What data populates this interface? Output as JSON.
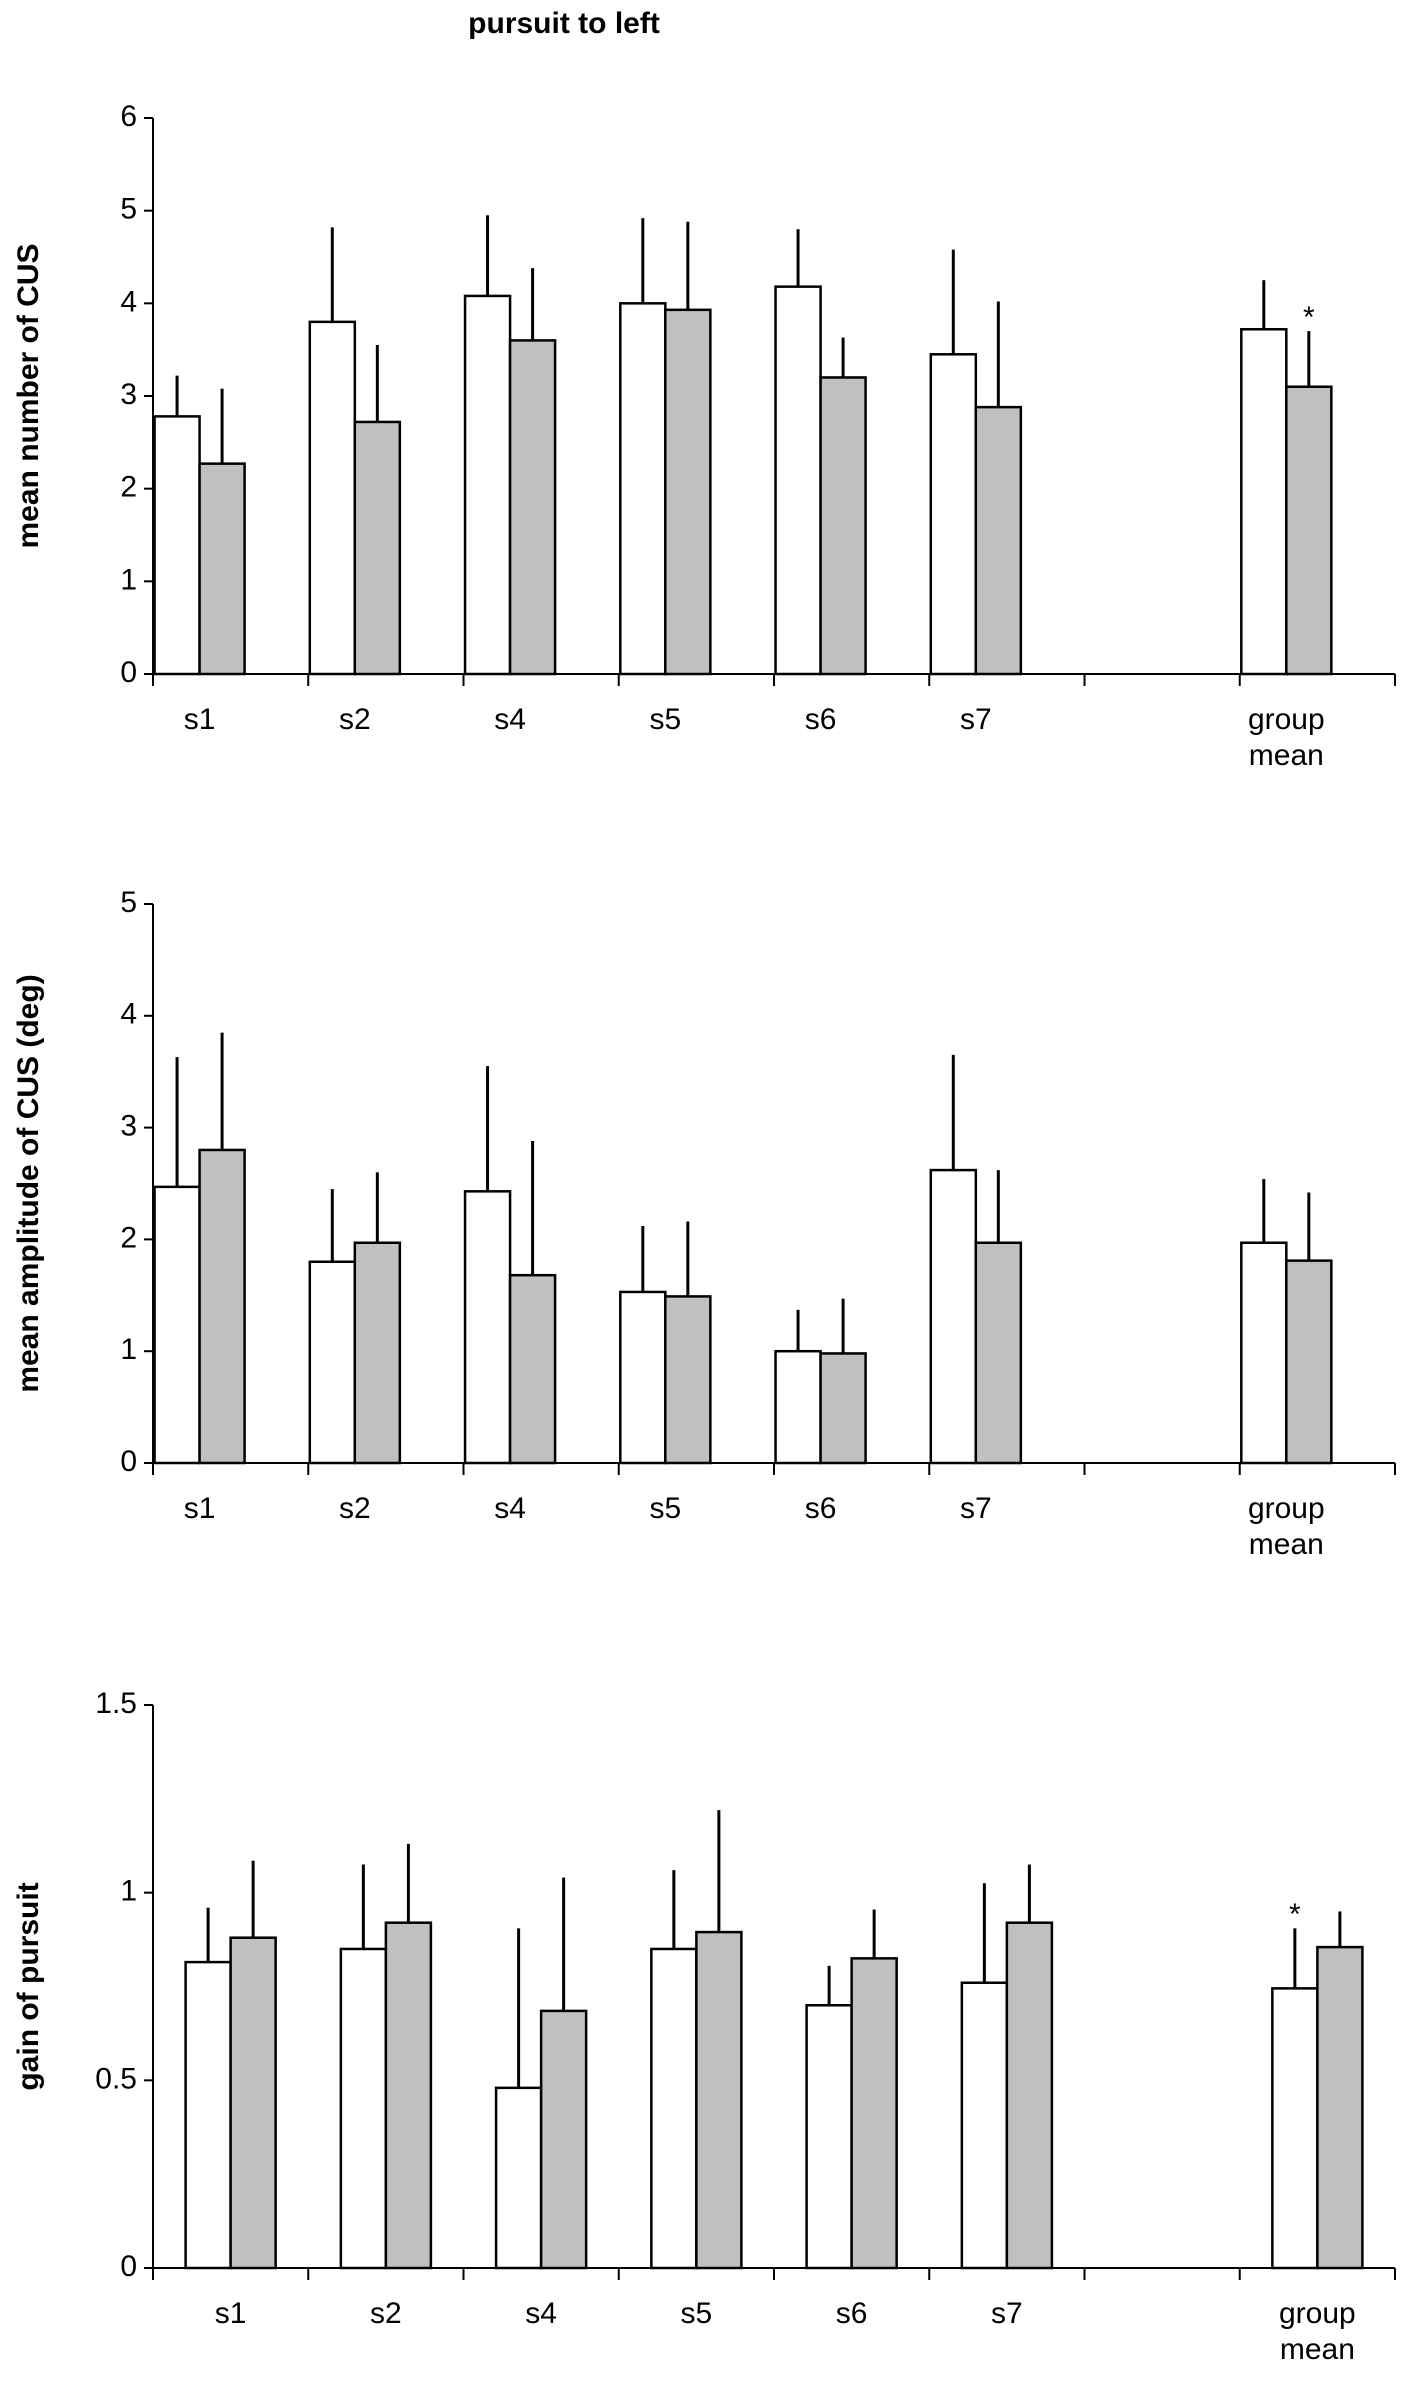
{
  "title": "pursuit to left",
  "chart_data": [
    {
      "type": "bar",
      "ylabel": "mean number of CUS",
      "categories": [
        "s1",
        "s2",
        "s4",
        "s5",
        "s6",
        "s7",
        null,
        "group mean"
      ],
      "series": [
        {
          "color": "#ffffff",
          "values": [
            2.78,
            3.8,
            4.08,
            4.0,
            4.18,
            3.45,
            null,
            3.72
          ],
          "errors": [
            0.44,
            1.02,
            0.87,
            0.92,
            0.62,
            1.13,
            null,
            0.53
          ]
        },
        {
          "color": "#c0c0c0",
          "values": [
            2.27,
            2.72,
            3.6,
            3.93,
            3.2,
            2.88,
            null,
            3.1
          ],
          "errors": [
            0.81,
            0.83,
            0.78,
            0.95,
            0.43,
            1.14,
            null,
            0.6
          ]
        }
      ],
      "ylim": [
        0,
        6
      ],
      "yticks": [
        0,
        1,
        2,
        3,
        4,
        5,
        6
      ],
      "annotations": [
        {
          "text": "*",
          "category": 7,
          "series": 1
        }
      ]
    },
    {
      "type": "bar",
      "ylabel": "mean amplitude of CUS  (deg)",
      "categories": [
        "s1",
        "s2",
        "s4",
        "s5",
        "s6",
        "s7",
        null,
        "group mean"
      ],
      "series": [
        {
          "color": "#ffffff",
          "values": [
            2.47,
            1.8,
            2.43,
            1.53,
            1.0,
            2.62,
            null,
            1.97
          ],
          "errors": [
            1.16,
            0.65,
            1.12,
            0.59,
            0.37,
            1.03,
            null,
            0.57
          ]
        },
        {
          "color": "#c0c0c0",
          "values": [
            2.8,
            1.97,
            1.68,
            1.49,
            0.98,
            1.97,
            null,
            1.81
          ],
          "errors": [
            1.05,
            0.63,
            1.2,
            0.67,
            0.49,
            0.65,
            null,
            0.61
          ]
        }
      ],
      "ylim": [
        0,
        5
      ],
      "yticks": [
        0,
        1,
        2,
        3,
        4,
        5
      ]
    },
    {
      "type": "bar",
      "ylabel": "gain of pursuit",
      "categories": [
        "s1",
        "s2",
        "s4",
        "s5",
        "s6",
        "s7",
        null,
        "group mean"
      ],
      "series": [
        {
          "color": "#ffffff",
          "values": [
            0.815,
            0.85,
            0.48,
            0.85,
            0.7,
            0.76,
            null,
            0.745
          ],
          "errors": [
            0.145,
            0.225,
            0.425,
            0.21,
            0.105,
            0.265,
            null,
            0.16
          ]
        },
        {
          "color": "#c0c0c0",
          "values": [
            0.88,
            0.92,
            0.685,
            0.895,
            0.825,
            0.92,
            null,
            0.855
          ],
          "errors": [
            0.205,
            0.21,
            0.355,
            0.325,
            0.13,
            0.155,
            null,
            0.095
          ]
        }
      ],
      "ylim": [
        0,
        1.5
      ],
      "yticks": [
        0,
        0.5,
        1,
        1.5
      ],
      "annotations": [
        {
          "text": "*",
          "category": 7,
          "series": 0
        }
      ]
    }
  ]
}
